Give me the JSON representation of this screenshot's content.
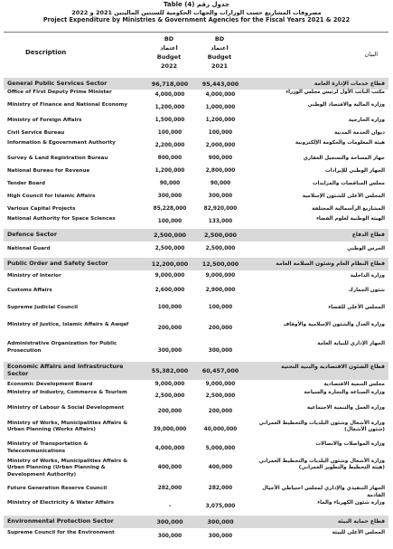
{
  "title": {
    "table_label": "Table (4) جدول رقم",
    "arabic": "مصروفات المشاريع حسب الوزارات والجهات الحكومية للسنتين الماليتين 2021 و 2022",
    "english": "Project Expenditure by Ministries & Government Agencies for the Fiscal Years 2021 & 2022"
  },
  "header": {
    "description": "Description",
    "col_2022": [
      "BD",
      "اعتماد",
      "Budget",
      "2022"
    ],
    "col_2021": [
      "BD",
      "اعتماد",
      "Budget",
      "2021"
    ],
    "arabic": "البيان"
  },
  "rows": [
    {
      "type": "sector",
      "en": "General Public Services Sector",
      "v2022": "96,718,000",
      "v2021": "95,443,000",
      "ar": "قطاع خدمات الإدارة العامة",
      "h": 13
    },
    {
      "type": "item",
      "en": "Office of First Deputy Prime Minister",
      "v2022": "4,000,000",
      "v2021": "4,000,000",
      "ar": "مكتب النائب الأول لرئيس مجلس الوزراء",
      "h": 14
    },
    {
      "type": "item",
      "en": "Ministry of Finance and National Economy",
      "v2022": "1,200,000",
      "v2021": "1,000,000",
      "ar": "وزارة المالية والاقتصاد الوطني",
      "h": 14
    },
    {
      "type": "item",
      "en": "Ministry of Foreign Affairs",
      "v2022": "1,500,000",
      "v2021": "1,200,000",
      "ar": "وزارة الخارجية",
      "h": 14
    },
    {
      "type": "item",
      "en": "Civil Service Bureau",
      "v2022": "100,000",
      "v2021": "100,000",
      "ar": "ديوان الخدمة المدنية",
      "h": 14
    },
    {
      "type": "item",
      "en": "Information & Egovernment Authority",
      "v2022": "2,200,000",
      "v2021": "2,000,000",
      "ar": "هيئة المعلومات والحكومة الإلكترونية",
      "h": 14
    },
    {
      "type": "item",
      "en": "Survey & Land Registration Bureau",
      "v2022": "800,000",
      "v2021": "900,000",
      "ar": "جهاز المساحة والتسجيل العقاري",
      "h": 14
    },
    {
      "type": "item",
      "en": "National Bureau for Revenue",
      "v2022": "1,200,000",
      "v2021": "2,800,000",
      "ar": "الجهاز الوطني للإيرادات",
      "h": 14
    },
    {
      "type": "item",
      "en": "Tender Board",
      "v2022": "90,000",
      "v2021": "90,000",
      "ar": "مجلس المناقصات والمزايدات",
      "h": 14
    },
    {
      "type": "item",
      "en": "High Council for Islamic Affairs",
      "v2022": "300,000",
      "v2021": "300,000",
      "ar": "المجلس الأعلى للشئون الإسلامية",
      "h": 14
    },
    {
      "type": "item",
      "en": "Various Capital Projects",
      "v2022": "85,228,000",
      "v2021": "82,920,000",
      "ar": "المشاريع الرأسمالية المختلفة",
      "h": 14
    },
    {
      "type": "item",
      "en": "National Authority for Space Sciences",
      "v2022": "100,000",
      "v2021": "133,000",
      "ar": "الهيئة الوطنية لعلوم الفضاء",
      "h": 14
    },
    {
      "type": "sector",
      "en": "Defence Sector",
      "v2022": "2,500,000",
      "v2021": "2,500,000",
      "ar": "قطاع الدفاع",
      "h": 14
    },
    {
      "type": "item",
      "en": "National Guard",
      "v2022": "2,500,000",
      "v2021": "2,500,000",
      "ar": "الحرس الوطني",
      "h": 18
    },
    {
      "type": "sector",
      "en": "Public Order and Safety Sector",
      "v2022": "12,200,000",
      "v2021": "12,500,000",
      "ar": "قطاع النظام العام وشئون السلامة العامة",
      "h": 14
    },
    {
      "type": "item",
      "en": "Ministry of Interior",
      "v2022": "9,000,000",
      "v2021": "9,000,000",
      "ar": "وزارة الداخلية",
      "h": 14
    },
    {
      "type": "item",
      "en": "Customs Affairs",
      "v2022": "2,600,000",
      "v2021": "2,900,000",
      "ar": "شئون الجمارك",
      "h": 18
    },
    {
      "type": "item",
      "en": "Supreme Judicial Council",
      "v2022": "100,000",
      "v2021": "100,000",
      "ar": "المجلس الأعلى للقضاء",
      "h": 20
    },
    {
      "type": "item",
      "en": "Ministry of Justice, Islamic Affairs & Awqaf",
      "v2022": "200,000",
      "v2021": "200,000",
      "ar": "وزارة العدل والشئون الإسلامية والأوقاف",
      "h": 26
    },
    {
      "type": "item",
      "en": "Administrative Organization for Public Prosecution",
      "v2022": "300,000",
      "v2021": "300,000",
      "ar": "الجهاز الإداري للنيابة العامة",
      "h": 23
    },
    {
      "type": "sector",
      "en": "Economic Affairs and Infrastructure Sector",
      "v2022": "55,382,000",
      "v2021": "60,457,000",
      "ar": "قطاع الشئون الاقتصادية والبنية التحتية",
      "h": 20
    },
    {
      "type": "item",
      "en": "Economic Development Board",
      "v2022": "9,000,000",
      "v2021": "9,000,000",
      "ar": "مجلس التنمية الاقتصادية",
      "h": 11
    },
    {
      "type": "item",
      "en": "Ministry of Industry, Commerce & Tourism",
      "v2022": "2,500,000",
      "v2021": "2,500,000",
      "ar": "وزارة الصناعة والتجارة والسياحة",
      "h": 16
    },
    {
      "type": "item",
      "en": "Ministry of Labour & Social Development",
      "v2022": "200,000",
      "v2021": "200,000",
      "ar": "وزارة العمل والتنمية الاجتماعية",
      "h": 17
    },
    {
      "type": "item",
      "en": "Ministry of Works, Municipalities Affairs & Urban Planning (Works Affairs)",
      "v2022": "39,000,000",
      "v2021": "40,000,000",
      "ar": "وزارة الأشغال وشئون البلديات والتخطيط العمراني (شئون الأشغال)",
      "h": 24
    },
    {
      "type": "item",
      "en": "Ministry of Transportation & Telecommunications",
      "v2022": "4,000,000",
      "v2021": "5,000,000",
      "ar": "وزارة المواصلات والاتصالات",
      "h": 17
    },
    {
      "type": "item",
      "en": "Ministry of Works, Municipalities Affairs & Urban Planning (Urban Planning & Development Authority)",
      "v2022": "400,000",
      "v2021": "400,000",
      "ar": "وزارة الأشغال وشئون البلديات والتخطيط العمراني (هيئة التخطيط والتطوير العمراني)",
      "h": 26
    },
    {
      "type": "item",
      "en": "Future Generation Reserve Council",
      "v2022": "282,000",
      "v2021": "282,000",
      "ar": "الجهاز التنفيذي والإداري لمجلس احتياطي الأجيال القادمة",
      "h": 20
    },
    {
      "type": "item",
      "en": "Ministry of Electricity & Water Affairs",
      "v2022": "-",
      "v2021": "3,075,000",
      "ar": "وزارة شئون الكهرباء والماء",
      "h": 19
    },
    {
      "type": "sector",
      "en": "Environmental Protection Sector",
      "v2022": "300,000",
      "v2021": "300,000",
      "ar": "قطاع حماية البيئة",
      "h": 14
    },
    {
      "type": "item",
      "en": "Supreme Council for the Environment",
      "v2022": "300,000",
      "v2021": "300,000",
      "ar": "المجلس الأعلى للبيئة",
      "h": 20
    }
  ]
}
